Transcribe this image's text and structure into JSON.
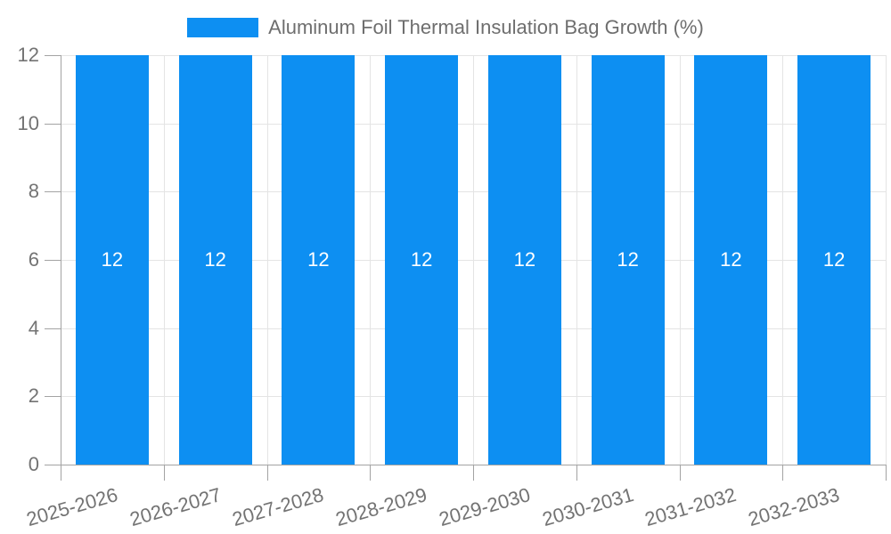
{
  "legend": {
    "position": "top-center",
    "swatch_color": "#0d8ff2"
  },
  "chart_data": {
    "type": "bar",
    "title": "",
    "xlabel": "",
    "ylabel": "",
    "categories": [
      "2025-2026",
      "2026-2027",
      "2027-2028",
      "2028-2029",
      "2029-2030",
      "2030-2031",
      "2031-2032",
      "2032-2033"
    ],
    "series": [
      {
        "name": "Aluminum Foil Thermal Insulation Bag Growth (%)",
        "values": [
          12,
          12,
          12,
          12,
          12,
          12,
          12,
          12
        ]
      }
    ],
    "value_labels": [
      "12",
      "12",
      "12",
      "12",
      "12",
      "12",
      "12",
      "12"
    ],
    "value_label_position": "inside-center",
    "ylim": [
      0,
      12
    ],
    "yticks": [
      0,
      2,
      4,
      6,
      8,
      10,
      12
    ],
    "grid": true,
    "legend_position": "top",
    "bar_color": "#0d8ff2",
    "grid_color": "#e4e4e4",
    "axis_color": "#a3a3a3",
    "tick_text_color": "#737373",
    "value_text_color": "#ffffff"
  }
}
